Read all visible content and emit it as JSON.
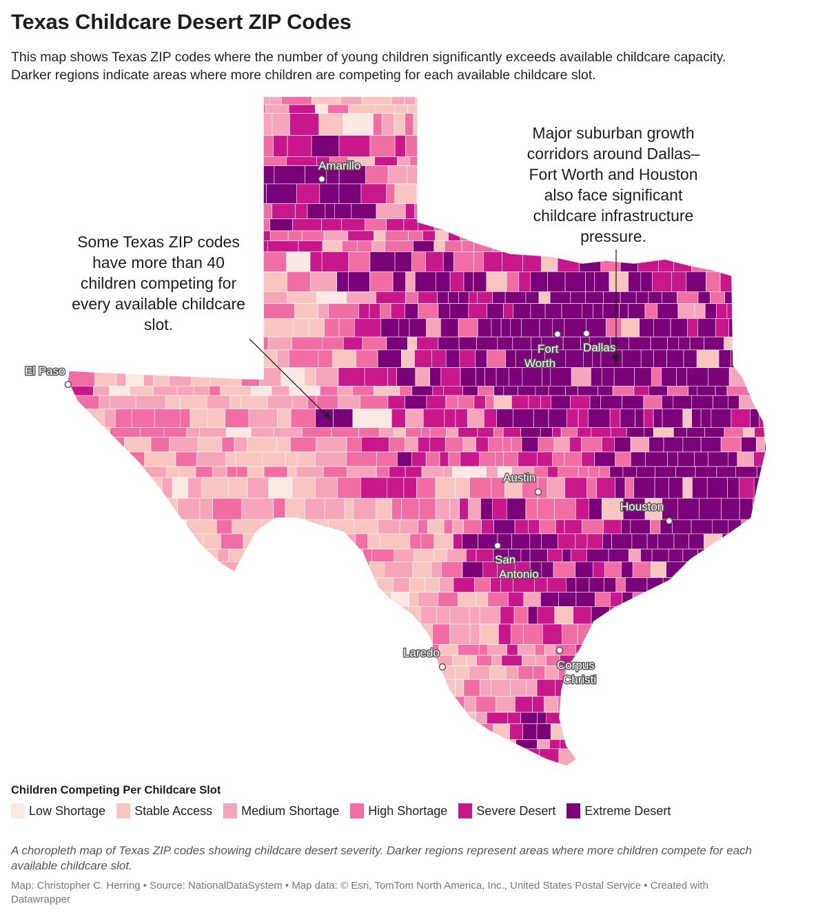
{
  "title": "Texas Childcare Desert ZIP Codes",
  "description": {
    "line1": "This map shows Texas ZIP codes where the number of young children significantly exceeds available childcare capacity.",
    "line2": "Darker regions indicate areas where more children are competing for each available childcare slot."
  },
  "annotations": {
    "left": {
      "lines": [
        "Some Texas ZIP codes",
        "have more than 40",
        "children competing for",
        "every available childcare",
        "slot."
      ]
    },
    "right": {
      "lines": [
        "Major suburban growth",
        "corridors around Dallas–",
        "Fort Worth and Houston",
        "also face significant",
        "childcare infrastructure",
        "pressure."
      ]
    }
  },
  "cities": {
    "amarillo": "Amarillo",
    "el_paso": "El Paso",
    "fort_worth_1": "Fort",
    "fort_worth_2": "Worth",
    "dallas": "Dallas",
    "austin": "Austin",
    "houston": "Houston",
    "san_antonio_1": "San",
    "san_antonio_2": "Antonio",
    "laredo": "Laredo",
    "corpus_1": "Corpus",
    "corpus_2": "Christi"
  },
  "legend": {
    "title": "Children Competing Per Childcare Slot",
    "items": [
      {
        "label": "Low Shortage",
        "color": "#fde9e4"
      },
      {
        "label": "Stable Access",
        "color": "#f9c5c0"
      },
      {
        "label": "Medium Shortage",
        "color": "#f7a5bb"
      },
      {
        "label": "High Shortage",
        "color": "#f06ea4"
      },
      {
        "label": "Severe Desert",
        "color": "#c7178a"
      },
      {
        "label": "Extreme Desert",
        "color": "#7a0177"
      }
    ]
  },
  "caption": {
    "line1": "A choropleth map of Texas ZIP codes showing childcare desert severity. Darker regions represent areas where more children compete for each",
    "line2": "available childcare slot."
  },
  "credits": {
    "line1": "Map: Christopher C. Herring • Source: NationalDataSystem • Map data: © Esri, TomTom North America, Inc., United States Postal Service  • Created with",
    "line2": "Datawrapper"
  }
}
